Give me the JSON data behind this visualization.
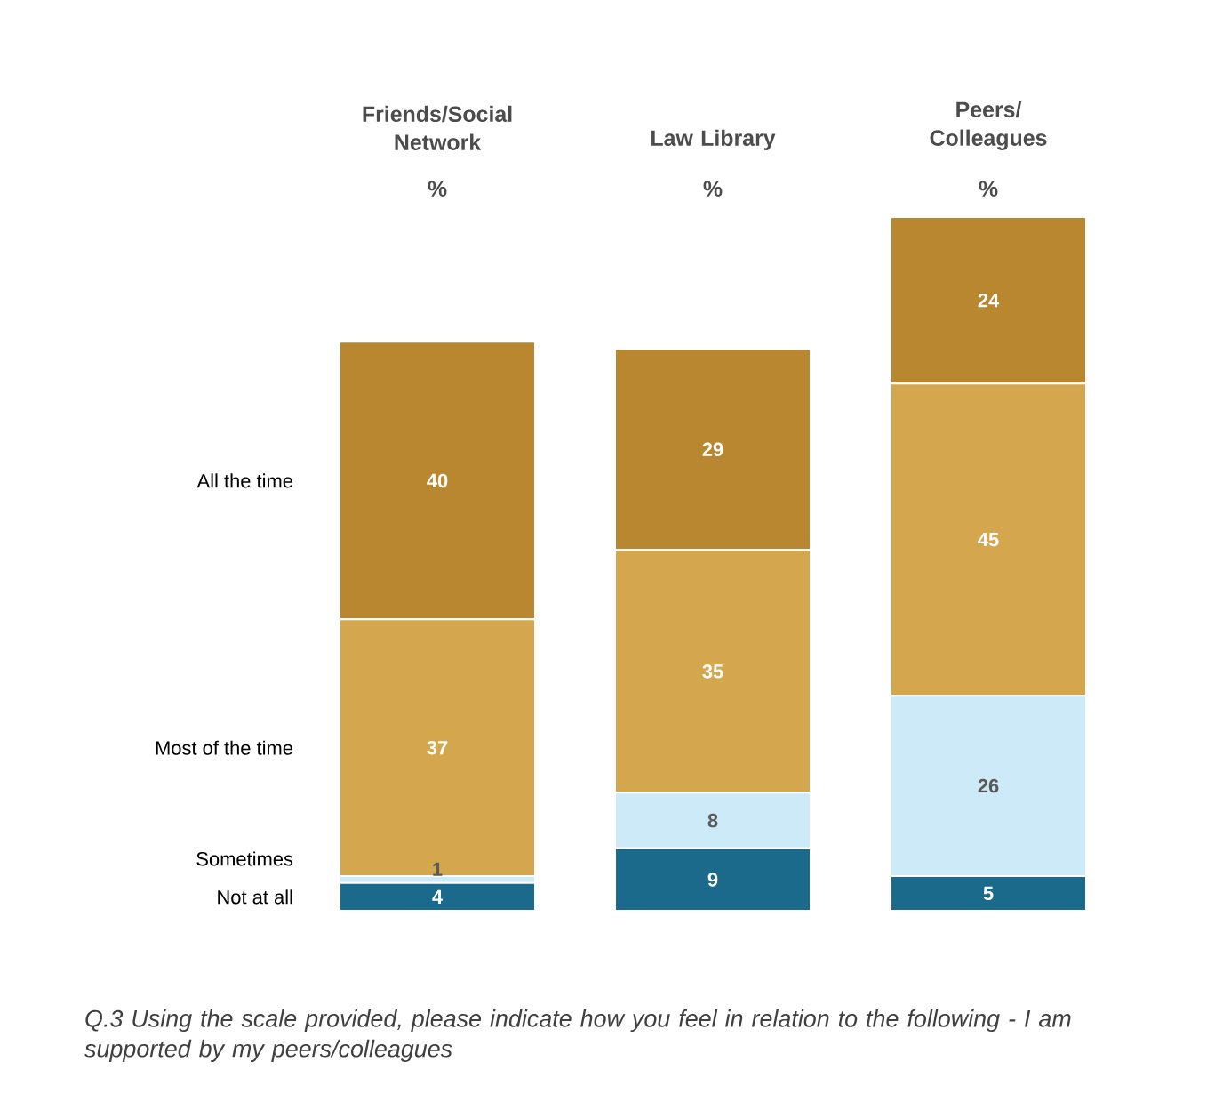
{
  "chart_data": {
    "type": "bar",
    "stacked": true,
    "data_labels": true,
    "categories": [
      "Friends/Social Network",
      "Law Library",
      "Peers/ Colleagues"
    ],
    "ylabel": "%",
    "series": [
      {
        "name": "Not at all",
        "color": "#1b6a8c",
        "values": [
          4,
          9,
          5
        ]
      },
      {
        "name": "Sometimes",
        "color": "#cdeaf9",
        "values": [
          1,
          8,
          26
        ]
      },
      {
        "name": "Most of the time",
        "color": "#d4a74f",
        "values": [
          37,
          35,
          45
        ]
      },
      {
        "name": "All the time",
        "color": "#b8872f",
        "values": [
          40,
          29,
          24
        ]
      }
    ],
    "annotations": [
      "Q.3 Using the scale provided, please indicate how you feel in relation to the following - I am supported by my peers/colleagues"
    ]
  }
}
